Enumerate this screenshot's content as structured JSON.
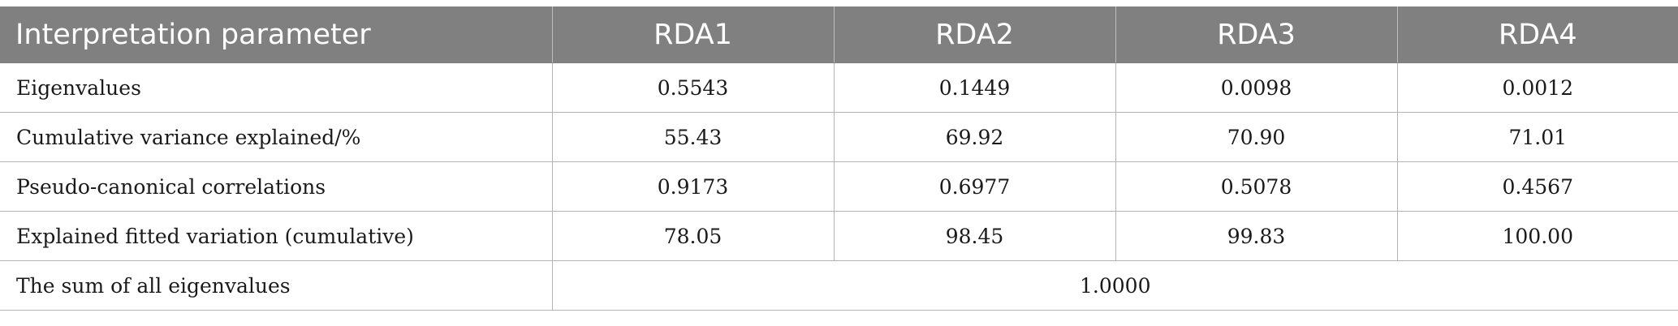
{
  "table": {
    "headers": [
      "Interpretation parameter",
      "RDA1",
      "RDA2",
      "RDA3",
      "RDA4"
    ],
    "rows": [
      {
        "label": "Eigenvalues",
        "values": [
          "0.5543",
          "0.1449",
          "0.0098",
          "0.0012"
        ]
      },
      {
        "label": "Cumulative variance explained/%",
        "values": [
          "55.43",
          "69.92",
          "70.90",
          "71.01"
        ]
      },
      {
        "label": "Pseudo-canonical correlations",
        "values": [
          "0.9173",
          "0.6977",
          "0.5078",
          "0.4567"
        ]
      },
      {
        "label": "Explained fitted variation (cumulative)",
        "values": [
          "78.05",
          "98.45",
          "99.83",
          "100.00"
        ]
      }
    ],
    "summary": {
      "label": "The sum of all eigenvalues",
      "value": "1.0000"
    }
  },
  "colors": {
    "header_bg": "#808080",
    "header_text": "#ffffff",
    "grid_line": "#b3b3b3"
  }
}
